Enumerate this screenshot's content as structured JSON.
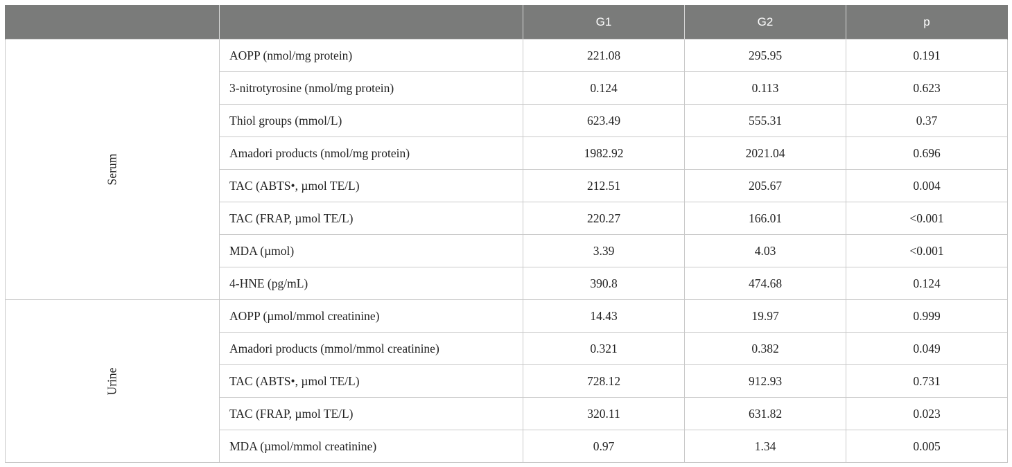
{
  "header": {
    "col_blank": "",
    "col_param": "",
    "g1": "G1",
    "g2": "G2",
    "p": "p"
  },
  "groups": [
    {
      "name": "Serum",
      "rows": [
        {
          "param": "AOPP (nmol/mg protein)",
          "g1": "221.08",
          "g2": "295.95",
          "p": "0.191"
        },
        {
          "param": "3-nitrotyrosine (nmol/mg protein)",
          "g1": "0.124",
          "g2": "0.113",
          "p": "0.623"
        },
        {
          "param": "Thiol groups (mmol/L)",
          "g1": "623.49",
          "g2": "555.31",
          "p": "0.37"
        },
        {
          "param": "Amadori products (nmol/mg protein)",
          "g1": "1982.92",
          "g2": "2021.04",
          "p": "0.696"
        },
        {
          "param": "TAC (ABTS•, µmol TE/L)",
          "g1": "212.51",
          "g2": "205.67",
          "p": "0.004"
        },
        {
          "param": "TAC (FRAP, µmol TE/L)",
          "g1": "220.27",
          "g2": "166.01",
          "p": "<0.001"
        },
        {
          "param": "MDA (µmol)",
          "g1": "3.39",
          "g2": "4.03",
          "p": "<0.001"
        },
        {
          "param": "4-HNE (pg/mL)",
          "g1": "390.8",
          "g2": "474.68",
          "p": "0.124"
        }
      ]
    },
    {
      "name": "Urine",
      "rows": [
        {
          "param": "AOPP (µmol/mmol creatinine)",
          "g1": "14.43",
          "g2": "19.97",
          "p": "0.999"
        },
        {
          "param": "Amadori products (mmol/mmol creatinine)",
          "g1": "0.321",
          "g2": "0.382",
          "p": "0.049"
        },
        {
          "param": "TAC (ABTS•, µmol TE/L)",
          "g1": "728.12",
          "g2": "912.93",
          "p": "0.731"
        },
        {
          "param": "TAC (FRAP, µmol TE/L)",
          "g1": "320.11",
          "g2": "631.82",
          "p": "0.023"
        },
        {
          "param": "MDA (µmol/mmol creatinine)",
          "g1": "0.97",
          "g2": "1.34",
          "p": "0.005"
        }
      ]
    }
  ]
}
